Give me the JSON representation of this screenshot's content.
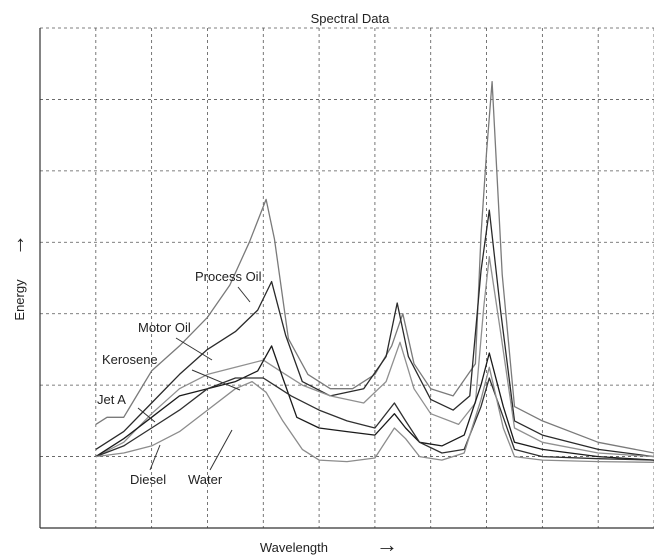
{
  "chart_data": {
    "type": "line",
    "title": "Spectral Data",
    "xlabel": "Wavelength",
    "ylabel": "Energy",
    "xlabel_arrow": "→",
    "ylabel_arrow": "→",
    "xlim": [
      0,
      11
    ],
    "ylim": [
      0,
      7
    ],
    "grid": true,
    "series": [
      {
        "name": "Process Oil",
        "color": "#7a7a7a",
        "points": [
          [
            1.0,
            1.45
          ],
          [
            1.2,
            1.55
          ],
          [
            1.5,
            1.55
          ],
          [
            2.0,
            2.2
          ],
          [
            2.5,
            2.55
          ],
          [
            3.0,
            2.95
          ],
          [
            3.4,
            3.4
          ],
          [
            3.75,
            4.0
          ],
          [
            4.05,
            4.6
          ],
          [
            4.2,
            4.05
          ],
          [
            4.45,
            2.65
          ],
          [
            4.8,
            2.15
          ],
          [
            5.2,
            1.95
          ],
          [
            5.6,
            1.95
          ],
          [
            6.0,
            2.15
          ],
          [
            6.3,
            2.55
          ],
          [
            6.5,
            3.0
          ],
          [
            6.7,
            2.3
          ],
          [
            7.0,
            1.95
          ],
          [
            7.4,
            1.85
          ],
          [
            7.8,
            2.3
          ],
          [
            7.9,
            4.1
          ],
          [
            8.0,
            5.25
          ],
          [
            8.1,
            6.25
          ],
          [
            8.28,
            3.55
          ],
          [
            8.5,
            1.7
          ],
          [
            9.0,
            1.5
          ],
          [
            10.0,
            1.2
          ],
          [
            11.0,
            1.05
          ]
        ]
      },
      {
        "name": "Motor Oil",
        "color": "#2a2a2a",
        "points": [
          [
            1.0,
            1.1
          ],
          [
            1.5,
            1.35
          ],
          [
            2.0,
            1.75
          ],
          [
            2.5,
            2.15
          ],
          [
            3.0,
            2.5
          ],
          [
            3.5,
            2.75
          ],
          [
            3.9,
            3.05
          ],
          [
            4.15,
            3.45
          ],
          [
            4.4,
            2.7
          ],
          [
            4.7,
            2.05
          ],
          [
            5.2,
            1.85
          ],
          [
            5.8,
            1.95
          ],
          [
            6.2,
            2.4
          ],
          [
            6.4,
            3.15
          ],
          [
            6.6,
            2.4
          ],
          [
            7.0,
            1.8
          ],
          [
            7.4,
            1.65
          ],
          [
            7.7,
            1.85
          ],
          [
            7.9,
            3.6
          ],
          [
            8.05,
            4.45
          ],
          [
            8.25,
            3.05
          ],
          [
            8.5,
            1.5
          ],
          [
            9.0,
            1.3
          ],
          [
            10.0,
            1.1
          ],
          [
            11.0,
            1.0
          ]
        ]
      },
      {
        "name": "Kerosene",
        "color": "#909090",
        "points": [
          [
            1.0,
            1.0
          ],
          [
            1.5,
            1.2
          ],
          [
            2.0,
            1.6
          ],
          [
            2.5,
            1.95
          ],
          [
            3.0,
            2.15
          ],
          [
            3.5,
            2.25
          ],
          [
            4.0,
            2.35
          ],
          [
            4.3,
            2.2
          ],
          [
            4.7,
            2.0
          ],
          [
            5.2,
            1.85
          ],
          [
            5.8,
            1.75
          ],
          [
            6.2,
            2.05
          ],
          [
            6.45,
            2.6
          ],
          [
            6.7,
            1.95
          ],
          [
            7.0,
            1.6
          ],
          [
            7.5,
            1.45
          ],
          [
            7.8,
            1.75
          ],
          [
            7.95,
            3.1
          ],
          [
            8.05,
            3.8
          ],
          [
            8.25,
            2.75
          ],
          [
            8.5,
            1.4
          ],
          [
            9.0,
            1.2
          ],
          [
            10.0,
            1.05
          ],
          [
            11.0,
            1.0
          ]
        ]
      },
      {
        "name": "Jet A",
        "color": "#1a1a1a",
        "points": [
          [
            1.0,
            1.0
          ],
          [
            1.5,
            1.25
          ],
          [
            2.0,
            1.55
          ],
          [
            2.5,
            1.85
          ],
          [
            3.0,
            1.95
          ],
          [
            3.5,
            2.05
          ],
          [
            3.9,
            2.2
          ],
          [
            4.15,
            2.55
          ],
          [
            4.35,
            2.1
          ],
          [
            4.6,
            1.55
          ],
          [
            5.0,
            1.4
          ],
          [
            5.5,
            1.35
          ],
          [
            6.0,
            1.3
          ],
          [
            6.35,
            1.6
          ],
          [
            6.55,
            1.4
          ],
          [
            6.8,
            1.2
          ],
          [
            7.2,
            1.15
          ],
          [
            7.6,
            1.3
          ],
          [
            7.9,
            2.0
          ],
          [
            8.05,
            2.45
          ],
          [
            8.3,
            1.7
          ],
          [
            8.5,
            1.2
          ],
          [
            9.0,
            1.1
          ],
          [
            10.0,
            1.0
          ],
          [
            11.0,
            0.95
          ]
        ]
      },
      {
        "name": "Diesel",
        "color": "#303030",
        "points": [
          [
            1.0,
            1.0
          ],
          [
            1.5,
            1.15
          ],
          [
            2.0,
            1.4
          ],
          [
            2.5,
            1.65
          ],
          [
            3.0,
            1.95
          ],
          [
            3.5,
            2.1
          ],
          [
            4.0,
            2.1
          ],
          [
            4.5,
            1.85
          ],
          [
            5.0,
            1.65
          ],
          [
            5.5,
            1.5
          ],
          [
            6.0,
            1.4
          ],
          [
            6.35,
            1.75
          ],
          [
            6.55,
            1.5
          ],
          [
            6.8,
            1.2
          ],
          [
            7.2,
            1.05
          ],
          [
            7.6,
            1.1
          ],
          [
            7.9,
            1.7
          ],
          [
            8.05,
            2.1
          ],
          [
            8.3,
            1.55
          ],
          [
            8.5,
            1.1
          ],
          [
            9.0,
            1.0
          ],
          [
            10.0,
            0.97
          ],
          [
            11.0,
            0.95
          ]
        ]
      },
      {
        "name": "Water",
        "color": "#8c8c8c",
        "points": [
          [
            1.0,
            1.0
          ],
          [
            1.5,
            1.05
          ],
          [
            2.0,
            1.15
          ],
          [
            2.5,
            1.35
          ],
          [
            3.0,
            1.65
          ],
          [
            3.5,
            1.95
          ],
          [
            3.8,
            2.05
          ],
          [
            4.05,
            1.9
          ],
          [
            4.35,
            1.5
          ],
          [
            4.7,
            1.1
          ],
          [
            5.0,
            0.95
          ],
          [
            5.5,
            0.93
          ],
          [
            6.0,
            0.98
          ],
          [
            6.35,
            1.4
          ],
          [
            6.55,
            1.25
          ],
          [
            6.8,
            1.0
          ],
          [
            7.2,
            0.95
          ],
          [
            7.6,
            1.05
          ],
          [
            7.9,
            1.8
          ],
          [
            8.05,
            2.25
          ],
          [
            8.3,
            1.4
          ],
          [
            8.5,
            1.0
          ],
          [
            9.0,
            0.95
          ],
          [
            10.0,
            0.93
          ],
          [
            11.0,
            0.92
          ]
        ]
      }
    ],
    "annotations": [
      {
        "text": "Process Oil",
        "series": "Process Oil"
      },
      {
        "text": "Motor Oil",
        "series": "Motor Oil"
      },
      {
        "text": "Kerosene",
        "series": "Kerosene"
      },
      {
        "text": "Jet A",
        "series": "Jet A"
      },
      {
        "text": "Diesel",
        "series": "Diesel"
      },
      {
        "text": "Water",
        "series": "Water"
      }
    ]
  }
}
